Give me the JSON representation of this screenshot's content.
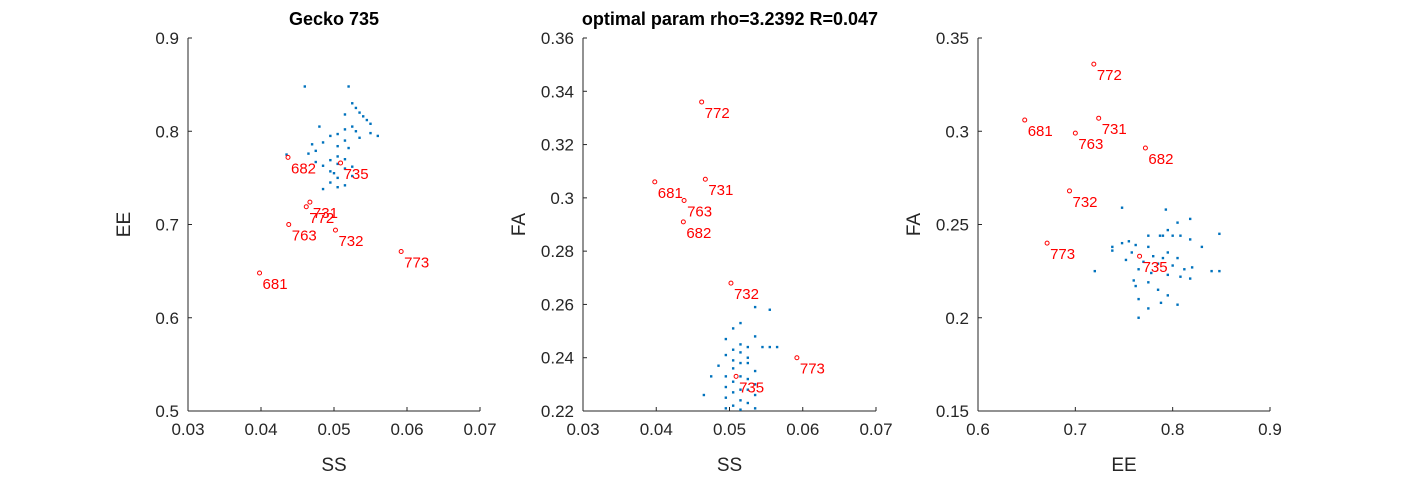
{
  "figure": {
    "title_left": "Gecko 735",
    "title_center": "optimal param rho=3.2392  R=0.047"
  },
  "colors": {
    "cloud": "#0072bd",
    "highlight": "#ff0000",
    "axis": "#262626"
  },
  "chart_data": [
    {
      "type": "scatter",
      "xlabel": "SS",
      "ylabel": "EE",
      "xlim": [
        0.03,
        0.07
      ],
      "ylim": [
        0.5,
        0.9
      ],
      "xticks": [
        "0.03",
        "0.04",
        "0.05",
        "0.06",
        "0.07"
      ],
      "yticks": [
        "0.5",
        "0.6",
        "0.7",
        "0.8",
        "0.9"
      ],
      "series": [
        {
          "role": "cloud",
          "points": [
            [
              0.046,
              0.848
            ],
            [
              0.052,
              0.848
            ],
            [
              0.0525,
              0.83
            ],
            [
              0.053,
              0.825
            ],
            [
              0.0535,
              0.82
            ],
            [
              0.0515,
              0.818
            ],
            [
              0.054,
              0.816
            ],
            [
              0.0545,
              0.812
            ],
            [
              0.055,
              0.808
            ],
            [
              0.0525,
              0.805
            ],
            [
              0.048,
              0.805
            ],
            [
              0.0515,
              0.802
            ],
            [
              0.053,
              0.8
            ],
            [
              0.055,
              0.798
            ],
            [
              0.0505,
              0.797
            ],
            [
              0.0495,
              0.795
            ],
            [
              0.056,
              0.795
            ],
            [
              0.0535,
              0.793
            ],
            [
              0.0515,
              0.79
            ],
            [
              0.0485,
              0.788
            ],
            [
              0.047,
              0.786
            ],
            [
              0.0505,
              0.784
            ],
            [
              0.052,
              0.782
            ],
            [
              0.0475,
              0.779
            ],
            [
              0.0465,
              0.776
            ],
            [
              0.0435,
              0.775
            ],
            [
              0.0505,
              0.773
            ],
            [
              0.0515,
              0.77
            ],
            [
              0.0495,
              0.769
            ],
            [
              0.0475,
              0.767
            ],
            [
              0.0505,
              0.765
            ],
            [
              0.0485,
              0.763
            ],
            [
              0.0525,
              0.762
            ],
            [
              0.0515,
              0.76
            ],
            [
              0.0495,
              0.757
            ],
            [
              0.05,
              0.755
            ],
            [
              0.0525,
              0.752
            ],
            [
              0.0505,
              0.75
            ],
            [
              0.0495,
              0.745
            ],
            [
              0.0515,
              0.742
            ],
            [
              0.0505,
              0.74
            ],
            [
              0.0485,
              0.738
            ]
          ]
        },
        {
          "role": "highlight",
          "points": [
            {
              "label": "682",
              "x": 0.0437,
              "y": 0.772
            },
            {
              "label": "735",
              "x": 0.0509,
              "y": 0.766
            },
            {
              "label": "731",
              "x": 0.0467,
              "y": 0.724
            },
            {
              "label": "772",
              "x": 0.0462,
              "y": 0.719
            },
            {
              "label": "763",
              "x": 0.0438,
              "y": 0.7
            },
            {
              "label": "732",
              "x": 0.0502,
              "y": 0.694
            },
            {
              "label": "773",
              "x": 0.0592,
              "y": 0.671
            },
            {
              "label": "681",
              "x": 0.0398,
              "y": 0.648
            }
          ]
        }
      ]
    },
    {
      "type": "scatter",
      "xlabel": "SS",
      "ylabel": "FA",
      "xlim": [
        0.03,
        0.07
      ],
      "ylim": [
        0.22,
        0.36
      ],
      "xticks": [
        "0.03",
        "0.04",
        "0.05",
        "0.06",
        "0.07"
      ],
      "yticks": [
        "0.22",
        "0.24",
        "0.26",
        "0.28",
        "0.3",
        "0.32",
        "0.34",
        "0.36"
      ],
      "series": [
        {
          "role": "cloud",
          "points": [
            [
              0.0535,
              0.259
            ],
            [
              0.0555,
              0.258
            ],
            [
              0.0515,
              0.253
            ],
            [
              0.0505,
              0.251
            ],
            [
              0.0535,
              0.248
            ],
            [
              0.0495,
              0.247
            ],
            [
              0.0515,
              0.245
            ],
            [
              0.0525,
              0.244
            ],
            [
              0.0545,
              0.244
            ],
            [
              0.0555,
              0.244
            ],
            [
              0.0565,
              0.244
            ],
            [
              0.0505,
              0.243
            ],
            [
              0.0515,
              0.242
            ],
            [
              0.0495,
              0.241
            ],
            [
              0.0525,
              0.24
            ],
            [
              0.0505,
              0.239
            ],
            [
              0.0515,
              0.238
            ],
            [
              0.0525,
              0.238
            ],
            [
              0.0485,
              0.237
            ],
            [
              0.0505,
              0.236
            ],
            [
              0.0535,
              0.235
            ],
            [
              0.0475,
              0.233
            ],
            [
              0.0495,
              0.233
            ],
            [
              0.0515,
              0.233
            ],
            [
              0.0525,
              0.232
            ],
            [
              0.0505,
              0.231
            ],
            [
              0.0535,
              0.23
            ],
            [
              0.0495,
              0.229
            ],
            [
              0.0515,
              0.228
            ],
            [
              0.0525,
              0.228
            ],
            [
              0.0505,
              0.227
            ],
            [
              0.0465,
              0.226
            ],
            [
              0.0535,
              0.226
            ],
            [
              0.0495,
              0.225
            ],
            [
              0.0515,
              0.224
            ],
            [
              0.0525,
              0.223
            ],
            [
              0.0505,
              0.222
            ],
            [
              0.0535,
              0.221
            ],
            [
              0.0495,
              0.221
            ],
            [
              0.0515,
              0.2205
            ]
          ]
        },
        {
          "role": "highlight",
          "points": [
            {
              "label": "772",
              "x": 0.0462,
              "y": 0.336
            },
            {
              "label": "731",
              "x": 0.0467,
              "y": 0.307
            },
            {
              "label": "681",
              "x": 0.0398,
              "y": 0.306
            },
            {
              "label": "763",
              "x": 0.0438,
              "y": 0.299
            },
            {
              "label": "682",
              "x": 0.0437,
              "y": 0.291
            },
            {
              "label": "732",
              "x": 0.0502,
              "y": 0.268
            },
            {
              "label": "773",
              "x": 0.0592,
              "y": 0.24
            },
            {
              "label": "735",
              "x": 0.0509,
              "y": 0.233
            }
          ]
        }
      ]
    },
    {
      "type": "scatter",
      "xlabel": "EE",
      "ylabel": "FA",
      "xlim": [
        0.6,
        0.9
      ],
      "ylim": [
        0.15,
        0.35
      ],
      "xticks": [
        "0.6",
        "0.7",
        "0.8",
        "0.9"
      ],
      "yticks": [
        "0.15",
        "0.2",
        "0.25",
        "0.3",
        "0.35"
      ],
      "series": [
        {
          "role": "cloud",
          "points": [
            [
              0.793,
              0.258
            ],
            [
              0.748,
              0.259
            ],
            [
              0.818,
              0.253
            ],
            [
              0.805,
              0.251
            ],
            [
              0.795,
              0.247
            ],
            [
              0.848,
              0.245
            ],
            [
              0.787,
              0.244
            ],
            [
              0.79,
              0.244
            ],
            [
              0.8,
              0.244
            ],
            [
              0.808,
              0.244
            ],
            [
              0.775,
              0.244
            ],
            [
              0.818,
              0.242
            ],
            [
              0.755,
              0.241
            ],
            [
              0.748,
              0.24
            ],
            [
              0.762,
              0.239
            ],
            [
              0.775,
              0.238
            ],
            [
              0.738,
              0.238
            ],
            [
              0.83,
              0.238
            ],
            [
              0.738,
              0.236
            ],
            [
              0.758,
              0.235
            ],
            [
              0.795,
              0.235
            ],
            [
              0.78,
              0.233
            ],
            [
              0.79,
              0.232
            ],
            [
              0.805,
              0.232
            ],
            [
              0.752,
              0.231
            ],
            [
              0.77,
              0.23
            ],
            [
              0.785,
              0.229
            ],
            [
              0.8,
              0.228
            ],
            [
              0.82,
              0.227
            ],
            [
              0.765,
              0.226
            ],
            [
              0.812,
              0.226
            ],
            [
              0.72,
              0.225
            ],
            [
              0.84,
              0.225
            ],
            [
              0.848,
              0.225
            ],
            [
              0.778,
              0.224
            ],
            [
              0.795,
              0.223
            ],
            [
              0.808,
              0.222
            ],
            [
              0.818,
              0.221
            ],
            [
              0.76,
              0.22
            ],
            [
              0.775,
              0.219
            ],
            [
              0.762,
              0.217
            ],
            [
              0.785,
              0.215
            ],
            [
              0.795,
              0.212
            ],
            [
              0.765,
              0.21
            ],
            [
              0.788,
              0.208
            ],
            [
              0.805,
              0.207
            ],
            [
              0.775,
              0.205
            ],
            [
              0.765,
              0.2
            ]
          ]
        },
        {
          "role": "highlight",
          "points": [
            {
              "label": "772",
              "x": 0.719,
              "y": 0.336
            },
            {
              "label": "731",
              "x": 0.724,
              "y": 0.307
            },
            {
              "label": "681",
              "x": 0.648,
              "y": 0.306
            },
            {
              "label": "763",
              "x": 0.7,
              "y": 0.299
            },
            {
              "label": "682",
              "x": 0.772,
              "y": 0.291
            },
            {
              "label": "732",
              "x": 0.694,
              "y": 0.268
            },
            {
              "label": "773",
              "x": 0.671,
              "y": 0.24
            },
            {
              "label": "735",
              "x": 0.766,
              "y": 0.233
            }
          ]
        }
      ]
    }
  ]
}
